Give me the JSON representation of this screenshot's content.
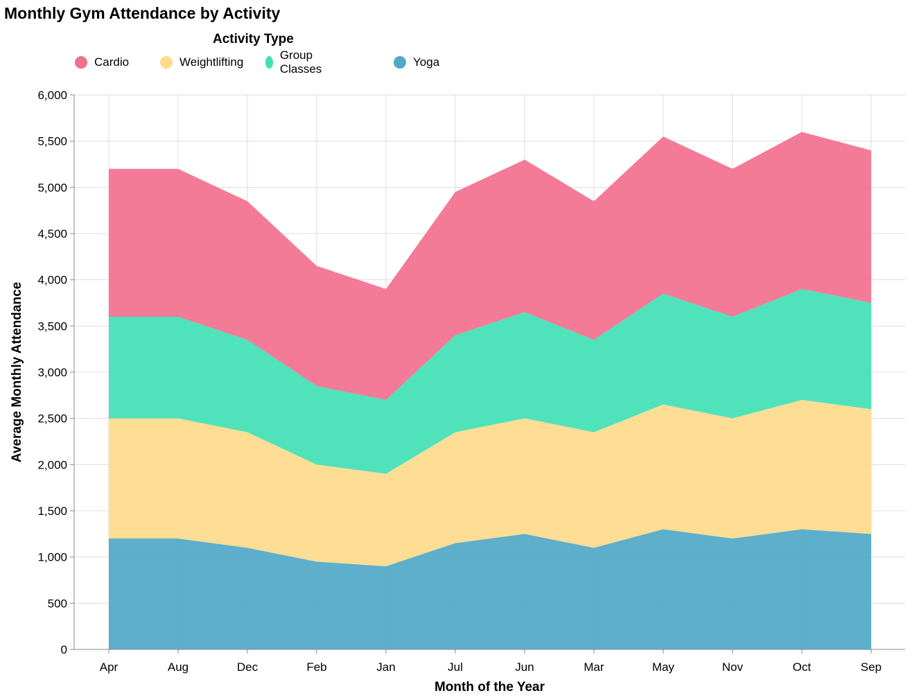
{
  "chart_data": {
    "type": "area",
    "stacked": true,
    "title": "Monthly Gym Attendance by Activity",
    "xlabel": "Month of the Year",
    "ylabel": "Average Monthly Attendance",
    "ylim": [
      0,
      6000
    ],
    "yticks": [
      0,
      500,
      1000,
      1500,
      2000,
      2500,
      3000,
      3500,
      4000,
      4500,
      5000,
      5500,
      6000
    ],
    "ytick_labels": [
      "0",
      "500",
      "1,000",
      "1,500",
      "2,000",
      "2,500",
      "3,000",
      "3,500",
      "4,000",
      "4,500",
      "5,000",
      "5,500",
      "6,000"
    ],
    "grid": true,
    "legend_title": "Activity Type",
    "legend_position": "top",
    "categories": [
      "Apr",
      "Aug",
      "Dec",
      "Feb",
      "Jan",
      "Jul",
      "Jun",
      "Mar",
      "May",
      "Nov",
      "Oct",
      "Sep"
    ],
    "series": [
      {
        "name": "Yoga",
        "color": "#4fa8c8",
        "values": [
          1200,
          1200,
          1100,
          950,
          900,
          1150,
          1250,
          1100,
          1300,
          1200,
          1300,
          1250
        ]
      },
      {
        "name": "Weightlifting",
        "color": "#fedb8b",
        "values": [
          1300,
          1300,
          1250,
          1050,
          1000,
          1200,
          1250,
          1250,
          1350,
          1300,
          1400,
          1350
        ]
      },
      {
        "name": "Group Classes",
        "color": "#40dfb5",
        "values": [
          1100,
          1100,
          1000,
          850,
          800,
          1050,
          1150,
          1000,
          1200,
          1100,
          1200,
          1150
        ]
      },
      {
        "name": "Cardio",
        "color": "#f2708e",
        "values": [
          1600,
          1600,
          1500,
          1300,
          1200,
          1550,
          1650,
          1500,
          1700,
          1600,
          1700,
          1650
        ]
      }
    ],
    "legend_order": [
      "Cardio",
      "Weightlifting",
      "Group Classes",
      "Yoga"
    ]
  }
}
